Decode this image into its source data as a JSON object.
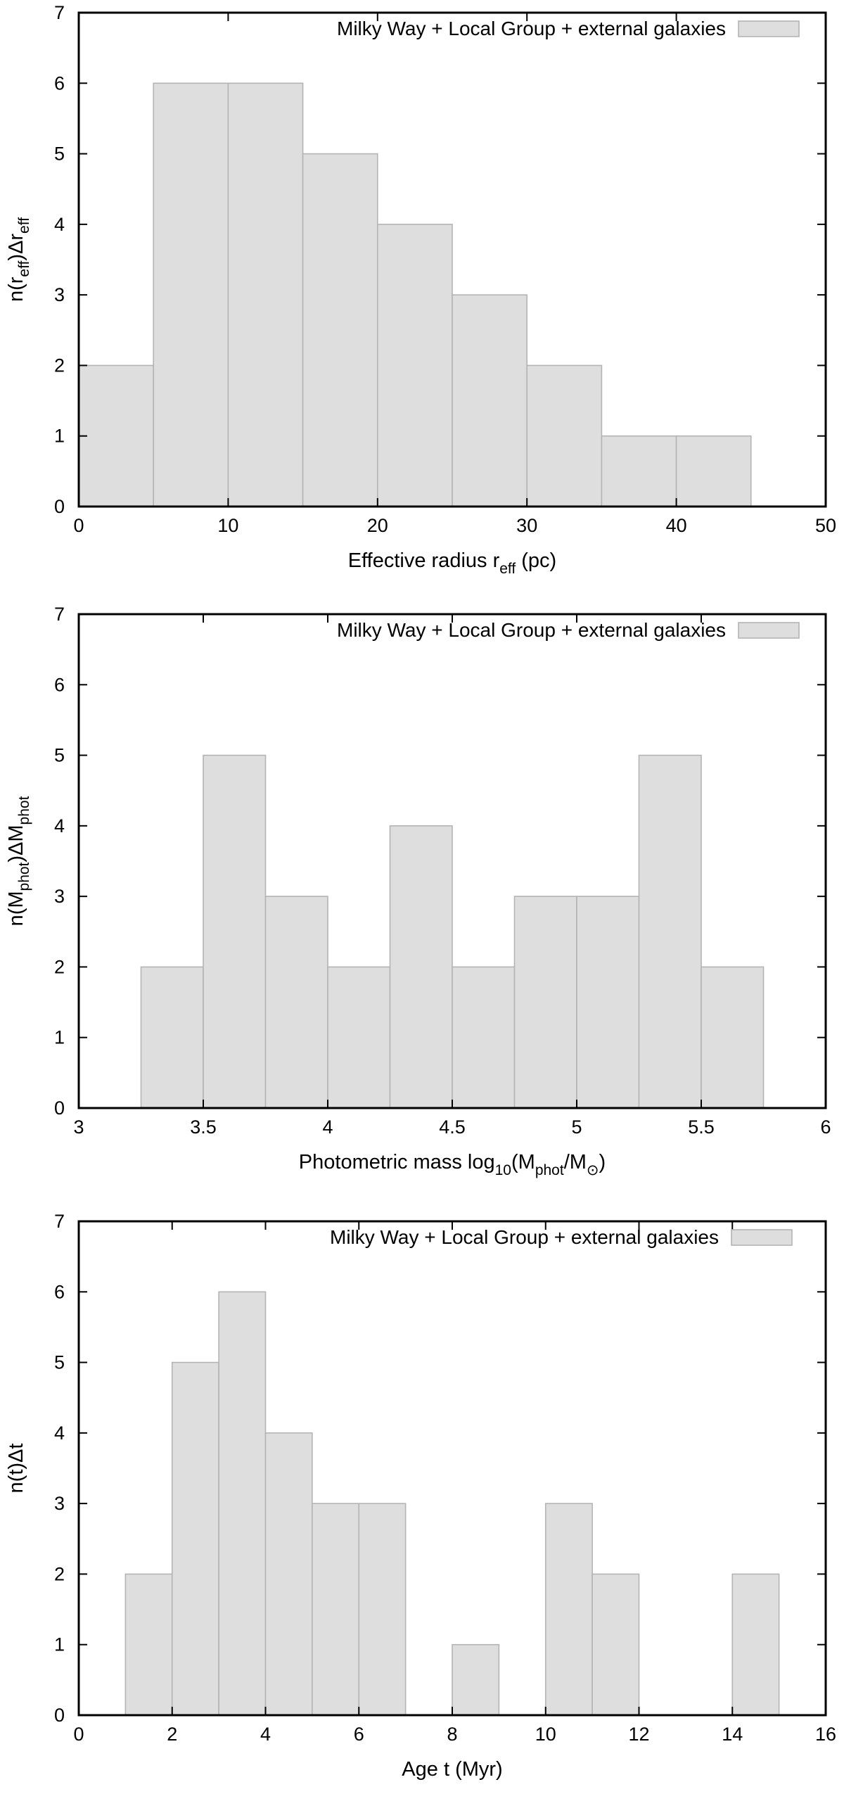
{
  "colors": {
    "bar_fill": "#dedede",
    "bar_stroke": "#b4b4b4",
    "axis": "#000000",
    "background": "#ffffff"
  },
  "chart_data": [
    {
      "type": "bar",
      "histogram": true,
      "bin_edges": [
        0,
        5,
        10,
        15,
        20,
        25,
        30,
        35,
        40,
        45
      ],
      "values": [
        2,
        6,
        6,
        5,
        4,
        3,
        2,
        1,
        1
      ],
      "series": [
        {
          "name": "Milky Way + Local Group + external galaxies",
          "values": [
            2,
            6,
            6,
            5,
            4,
            3,
            2,
            1,
            1
          ]
        }
      ],
      "legend_label": "Milky Way + Local Group + external galaxies",
      "legend_position": "top-right",
      "xlim": [
        0,
        50
      ],
      "ylim": [
        0,
        7
      ],
      "xticks": [
        "0",
        "10",
        "20",
        "30",
        "40",
        "50"
      ],
      "yticks": [
        "0",
        "1",
        "2",
        "3",
        "4",
        "5",
        "6",
        "7"
      ],
      "title": "",
      "xlabel": {
        "main": "Effective radius r",
        "sub": "eff",
        "tail": " (pc)"
      },
      "ylabel": {
        "p1": "n(r",
        "s1": "eff",
        "p2": ")Δr",
        "s2": "eff",
        "p3": ""
      },
      "grid": false
    },
    {
      "type": "bar",
      "histogram": true,
      "bin_edges": [
        3.25,
        3.5,
        3.75,
        4.0,
        4.25,
        4.5,
        4.75,
        5.0,
        5.25,
        5.5,
        5.75
      ],
      "values": [
        2,
        5,
        3,
        2,
        4,
        2,
        3,
        3,
        5,
        2
      ],
      "series": [
        {
          "name": "Milky Way + Local Group + external galaxies",
          "values": [
            2,
            5,
            3,
            2,
            4,
            2,
            3,
            3,
            5,
            2
          ]
        }
      ],
      "legend_label": "Milky Way + Local Group + external galaxies",
      "legend_position": "top-right",
      "xlim": [
        3,
        6
      ],
      "ylim": [
        0,
        7
      ],
      "xticks": [
        "3",
        "3.5",
        "4",
        "4.5",
        "5",
        "5.5",
        "6"
      ],
      "yticks": [
        "0",
        "1",
        "2",
        "3",
        "4",
        "5",
        "6",
        "7"
      ],
      "title": "",
      "xlabel": {
        "main": "Photometric mass log",
        "sub": "10",
        "tail": "(M",
        "sub2": "phot",
        "tail2": "/M",
        "sub3": "⊙",
        "tail3": ")"
      },
      "ylabel": {
        "p1": "n(M",
        "s1": "phot",
        "p2": ")ΔM",
        "s2": "phot",
        "p3": ""
      },
      "grid": false
    },
    {
      "type": "bar",
      "histogram": true,
      "bin_edges": [
        1,
        2,
        3,
        4,
        5,
        6,
        7,
        8,
        9,
        10,
        11,
        12,
        13,
        14,
        15
      ],
      "values": [
        2,
        5,
        6,
        4,
        3,
        3,
        0,
        1,
        0,
        3,
        2,
        0,
        0,
        2
      ],
      "series": [
        {
          "name": "Milky Way + Local Group + external galaxies",
          "values": [
            2,
            5,
            6,
            4,
            3,
            3,
            0,
            1,
            0,
            3,
            2,
            0,
            0,
            2
          ]
        }
      ],
      "legend_label": "Milky Way + Local Group + external galaxies",
      "legend_position": "top-right",
      "xlim": [
        0,
        16
      ],
      "ylim": [
        0,
        7
      ],
      "xticks": [
        "0",
        "2",
        "4",
        "6",
        "8",
        "10",
        "12",
        "14",
        "16"
      ],
      "yticks": [
        "0",
        "1",
        "2",
        "3",
        "4",
        "5",
        "6",
        "7"
      ],
      "title": "",
      "xlabel": {
        "main": "Age t (Myr)"
      },
      "ylabel": {
        "p1": "n(t)Δt"
      },
      "grid": false
    }
  ]
}
